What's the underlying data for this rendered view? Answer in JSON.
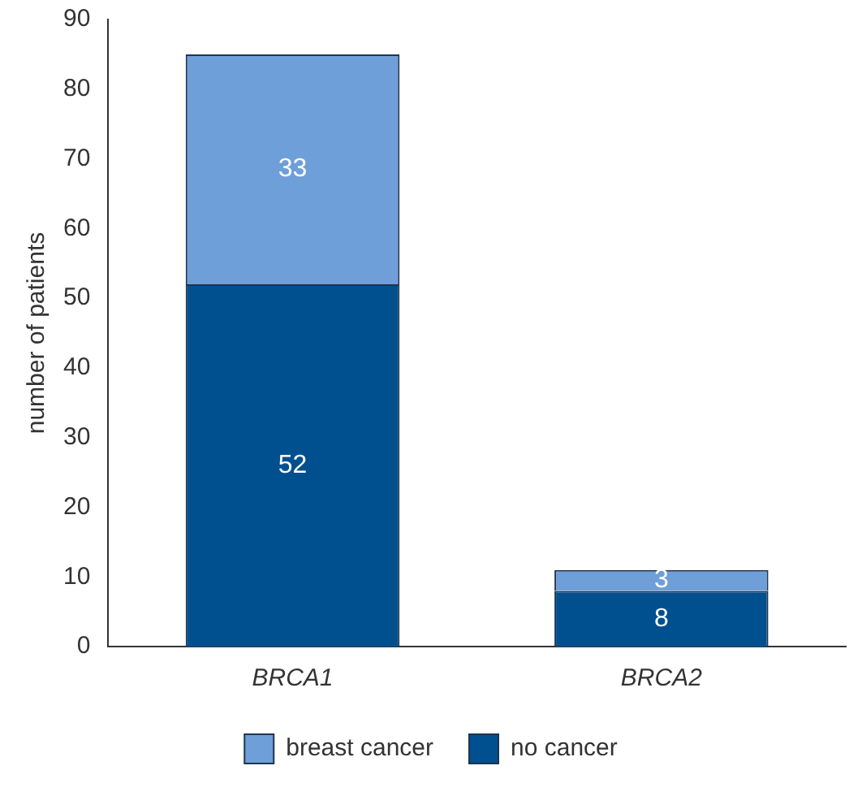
{
  "chart_data": {
    "type": "bar",
    "stacked": true,
    "ylabel": "number of patients",
    "categories": [
      "BRCA1",
      "BRCA2"
    ],
    "series": [
      {
        "name": "no cancer",
        "color": "#00508f",
        "values": [
          52,
          8
        ]
      },
      {
        "name": "breast cancer",
        "color": "#6f9fd8",
        "values": [
          33,
          3
        ]
      }
    ],
    "ylim": [
      0,
      90
    ],
    "yticks": [
      0,
      10,
      20,
      30,
      40,
      50,
      60,
      70,
      80,
      90
    ],
    "grid": false,
    "legend": "bottom",
    "data_labels": true
  }
}
